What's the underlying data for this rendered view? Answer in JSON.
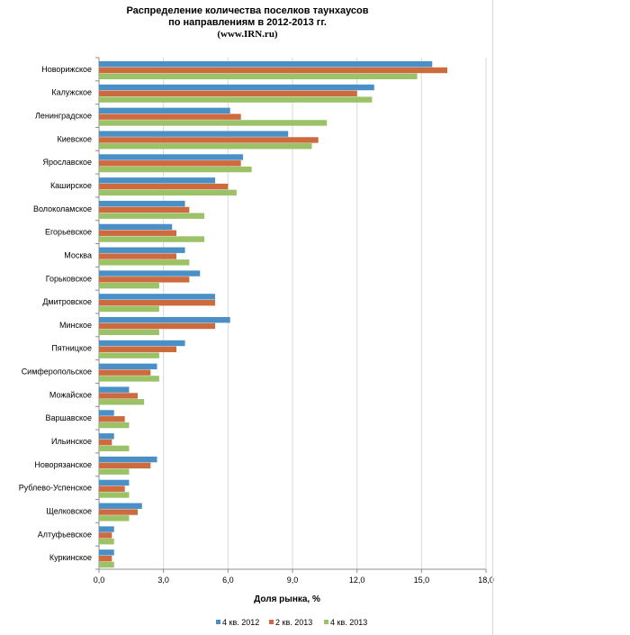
{
  "header": {
    "title_line1": "Распределение количества поселков таунхаусов",
    "title_line2": "по направлениям в 2012-2013 гг.",
    "source": "(www.IRN.ru)"
  },
  "chart_data": {
    "type": "bar",
    "orientation": "horizontal",
    "title": "Распределение количества поселков таунхаусов по направлениям в 2012-2013 гг.",
    "xlabel": "Доля рынка, %",
    "ylabel": "",
    "xlim": [
      0,
      18
    ],
    "x_ticks": [
      "0,0",
      "3,0",
      "6,0",
      "9,0",
      "12,0",
      "15,0",
      "18,0"
    ],
    "grid": "vertical",
    "legend_position": "bottom",
    "categories": [
      "Новорижское",
      "Калужское",
      "Ленинградское",
      "Киевское",
      "Ярославское",
      "Каширское",
      "Волоколамское",
      "Егорьевское",
      "Москва",
      "Горьковское",
      "Дмитровское",
      "Минское",
      "Пятницкое",
      "Симферопольское",
      "Можайское",
      "Варшавское",
      "Ильинское",
      "Новорязанское",
      "Рублево-Успенское",
      "Щелковское",
      "Алтуфьевское",
      "Куркинское"
    ],
    "series": [
      {
        "name": "4 кв. 2012",
        "color": "#4a90c6",
        "values": [
          15.5,
          12.8,
          6.1,
          8.8,
          6.7,
          5.4,
          4.0,
          3.4,
          4.0,
          4.7,
          5.4,
          6.1,
          4.0,
          2.7,
          1.4,
          0.7,
          0.7,
          2.7,
          1.4,
          2.0,
          0.7,
          0.7
        ]
      },
      {
        "name": "2 кв. 2013",
        "color": "#cd6a3e",
        "values": [
          16.2,
          12.0,
          6.6,
          10.2,
          6.6,
          6.0,
          4.2,
          3.6,
          3.6,
          4.2,
          5.4,
          5.4,
          3.6,
          2.4,
          1.8,
          1.2,
          0.6,
          2.4,
          1.2,
          1.8,
          0.6,
          0.6
        ]
      },
      {
        "name": "4 кв. 2013",
        "color": "#9bc267",
        "values": [
          14.8,
          12.7,
          10.6,
          9.9,
          7.1,
          6.4,
          4.9,
          4.9,
          4.2,
          2.8,
          2.8,
          2.8,
          2.8,
          2.8,
          2.1,
          1.4,
          1.4,
          1.4,
          1.4,
          1.4,
          0.7,
          0.7
        ]
      }
    ]
  }
}
